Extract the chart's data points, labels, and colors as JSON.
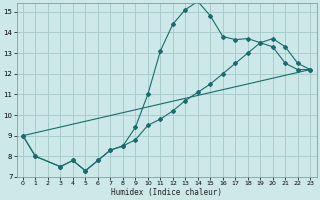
{
  "xlabel": "Humidex (Indice chaleur)",
  "bg_color": "#cce8e8",
  "grid_color": "#aacccc",
  "line_color": "#1a6b6b",
  "xlim": [
    -0.5,
    23.5
  ],
  "ylim": [
    7.0,
    15.4
  ],
  "xticks": [
    0,
    1,
    2,
    3,
    4,
    5,
    6,
    7,
    8,
    9,
    10,
    11,
    12,
    13,
    14,
    15,
    16,
    17,
    18,
    19,
    20,
    21,
    22,
    23
  ],
  "yticks": [
    7,
    8,
    9,
    10,
    11,
    12,
    13,
    14,
    15
  ],
  "line1_x": [
    0,
    1,
    3,
    4,
    5,
    6,
    7,
    8,
    9,
    10,
    11,
    12,
    13,
    14,
    15,
    16,
    17,
    18,
    19,
    20,
    21,
    22,
    23
  ],
  "line1_y": [
    9.0,
    8.0,
    7.5,
    7.8,
    7.3,
    7.8,
    8.3,
    8.5,
    9.4,
    11.0,
    13.1,
    14.4,
    15.1,
    15.5,
    14.8,
    13.8,
    13.65,
    13.7,
    13.5,
    13.3,
    12.5,
    12.2,
    12.2
  ],
  "line2_x": [
    0,
    1,
    3,
    4,
    5,
    6,
    7,
    8,
    9,
    10,
    11,
    12,
    13,
    14,
    15,
    16,
    17,
    18,
    19,
    20,
    21,
    22,
    23
  ],
  "line2_y": [
    9.0,
    8.0,
    7.5,
    7.8,
    7.3,
    7.8,
    8.3,
    8.5,
    8.8,
    9.5,
    9.8,
    10.2,
    10.7,
    11.1,
    11.5,
    12.0,
    12.5,
    13.0,
    13.5,
    13.7,
    13.3,
    12.5,
    12.2
  ],
  "line3_x": [
    0,
    23
  ],
  "line3_y": [
    9.0,
    12.2
  ]
}
